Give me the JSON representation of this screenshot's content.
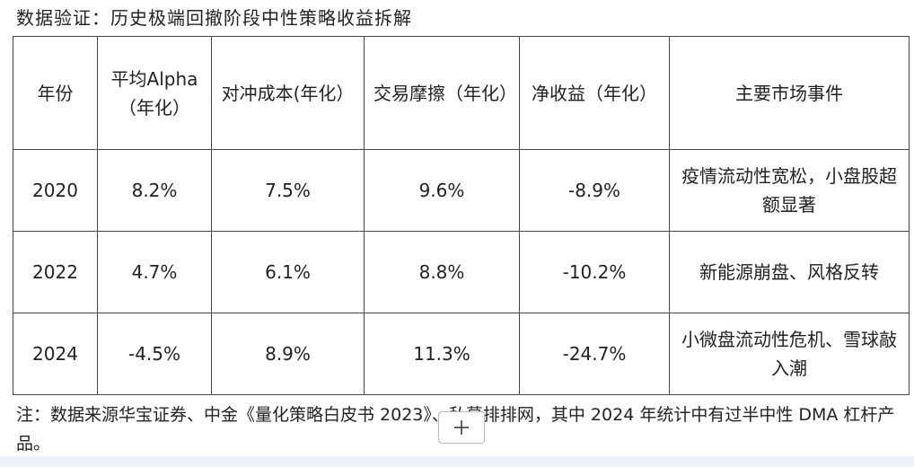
{
  "header": {
    "title": "数据验证：历史极端回撤阶段中性策略收益拆解"
  },
  "table": {
    "columns": [
      "年份",
      "平均Alpha（年化）",
      "对冲成本(年化）",
      "交易摩擦（年化）",
      "净收益（年化）",
      "主要市场事件"
    ],
    "rows": [
      [
        "2020",
        "8.2%",
        "7.5%",
        "9.6%",
        "-8.9%",
        "疫情流动性宽松，小盘股超额显著"
      ],
      [
        "2022",
        "4.7%",
        "6.1%",
        "8.8%",
        "-10.2%",
        "新能源崩盘、风格反转"
      ],
      [
        "2024",
        "-4.5%",
        "8.9%",
        "11.3%",
        "-24.7%",
        "小微盘流动性危机、雪球敲入潮"
      ]
    ]
  },
  "note": "注：数据来源华宝证券、中金《量化策略白皮书 2023》、私募排排网，其中 2024 年统计中有过半中性 DMA 杠杆产品。"
}
